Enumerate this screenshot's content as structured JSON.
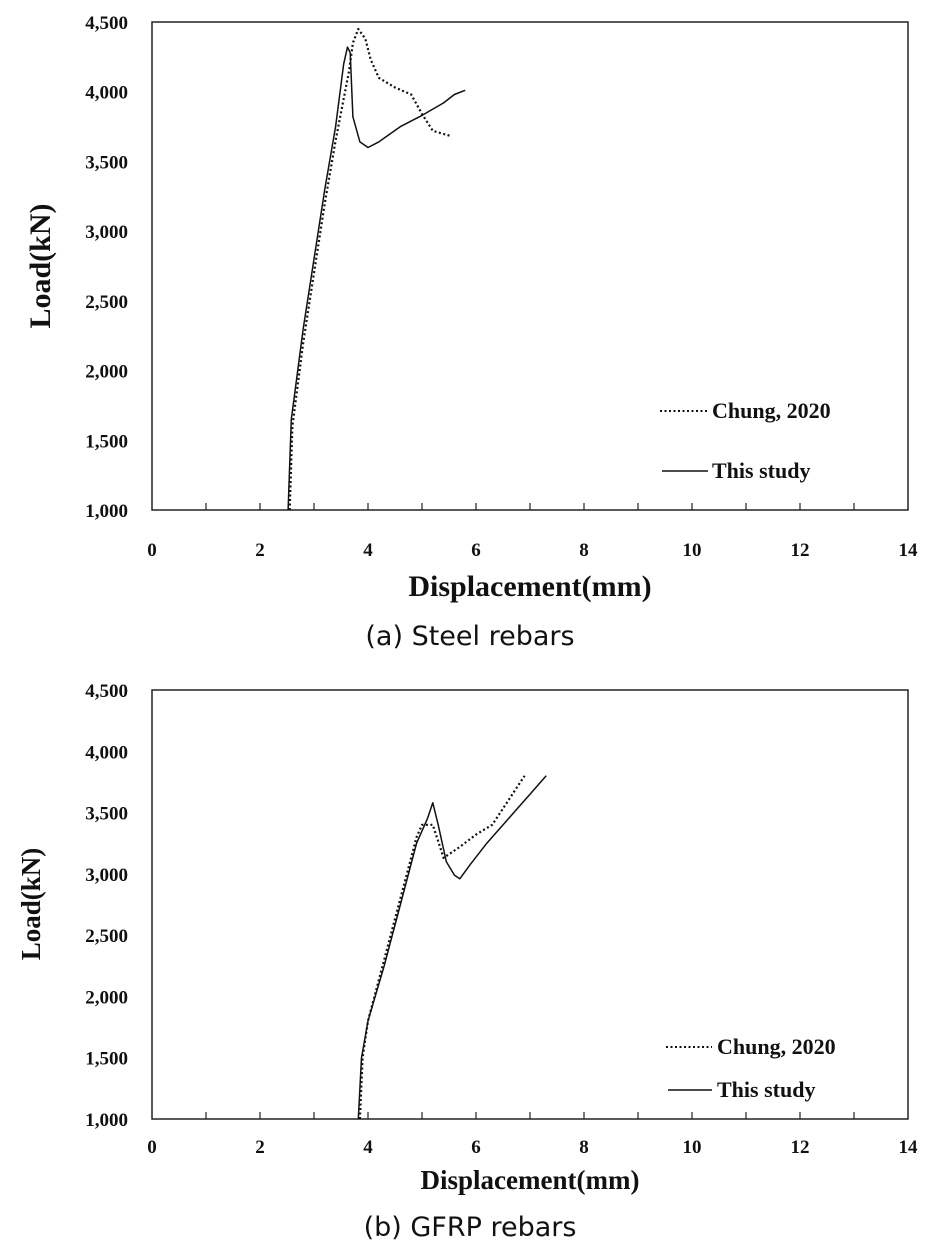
{
  "chart_data": [
    {
      "type": "line",
      "caption": "(a) Steel rebars",
      "xlabel": "Displacement(mm)",
      "ylabel": "Load(kN)",
      "xlim": [
        0,
        14
      ],
      "ylim": [
        1000,
        4500
      ],
      "x_ticks": [
        "0",
        "2",
        "4",
        "6",
        "8",
        "10",
        "12",
        "14"
      ],
      "y_ticks": [
        "1,000",
        "1,500",
        "2,000",
        "2,500",
        "3,000",
        "3,500",
        "4,000",
        "4,500"
      ],
      "legend_position": "bottom-right",
      "grid": false,
      "series": [
        {
          "name": "Chung, 2020",
          "style": "dotted",
          "points": [
            [
              2.55,
              1000
            ],
            [
              2.6,
              1600
            ],
            [
              2.8,
              2200
            ],
            [
              3.0,
              2700
            ],
            [
              3.2,
              3200
            ],
            [
              3.4,
              3650
            ],
            [
              3.55,
              3950
            ],
            [
              3.65,
              4150
            ],
            [
              3.72,
              4350
            ],
            [
              3.82,
              4450
            ],
            [
              3.95,
              4380
            ],
            [
              4.05,
              4230
            ],
            [
              4.2,
              4100
            ],
            [
              4.5,
              4030
            ],
            [
              4.8,
              3980
            ],
            [
              5.0,
              3840
            ],
            [
              5.2,
              3720
            ],
            [
              5.55,
              3680
            ]
          ]
        },
        {
          "name": "This study",
          "style": "solid",
          "points": [
            [
              2.52,
              1000
            ],
            [
              2.58,
              1650
            ],
            [
              2.8,
              2300
            ],
            [
              3.0,
              2800
            ],
            [
              3.2,
              3300
            ],
            [
              3.4,
              3750
            ],
            [
              3.55,
              4200
            ],
            [
              3.62,
              4320
            ],
            [
              3.67,
              4280
            ],
            [
              3.72,
              3820
            ],
            [
              3.85,
              3640
            ],
            [
              4.0,
              3600
            ],
            [
              4.2,
              3640
            ],
            [
              4.6,
              3750
            ],
            [
              5.0,
              3830
            ],
            [
              5.4,
              3920
            ],
            [
              5.6,
              3980
            ],
            [
              5.8,
              4010
            ]
          ]
        }
      ]
    },
    {
      "type": "line",
      "caption": "(b) GFRP rebars",
      "xlabel": "Displacement(mm)",
      "ylabel": "Load(kN)",
      "xlim": [
        0,
        14
      ],
      "ylim": [
        1000,
        4500
      ],
      "x_ticks": [
        "0",
        "2",
        "4",
        "6",
        "8",
        "10",
        "12",
        "14"
      ],
      "y_ticks": [
        "1,000",
        "1,500",
        "2,000",
        "2,500",
        "3,000",
        "3,500",
        "4,000",
        "4,500"
      ],
      "legend_position": "bottom-right",
      "grid": false,
      "series": [
        {
          "name": "Chung, 2020",
          "style": "dotted",
          "points": [
            [
              3.85,
              1000
            ],
            [
              3.9,
              1500
            ],
            [
              4.0,
              1800
            ],
            [
              4.3,
              2300
            ],
            [
              4.6,
              2800
            ],
            [
              4.9,
              3300
            ],
            [
              5.0,
              3400
            ],
            [
              5.2,
              3400
            ],
            [
              5.4,
              3130
            ],
            [
              5.7,
              3220
            ],
            [
              6.0,
              3320
            ],
            [
              6.3,
              3400
            ],
            [
              6.6,
              3600
            ],
            [
              6.9,
              3800
            ]
          ]
        },
        {
          "name": "This study",
          "style": "solid",
          "points": [
            [
              3.82,
              1000
            ],
            [
              3.88,
              1500
            ],
            [
              4.0,
              1800
            ],
            [
              4.3,
              2250
            ],
            [
              4.6,
              2750
            ],
            [
              4.9,
              3250
            ],
            [
              5.1,
              3450
            ],
            [
              5.2,
              3580
            ],
            [
              5.3,
              3400
            ],
            [
              5.45,
              3100
            ],
            [
              5.6,
              2990
            ],
            [
              5.7,
              2960
            ],
            [
              5.9,
              3080
            ],
            [
              6.2,
              3250
            ],
            [
              6.6,
              3450
            ],
            [
              7.0,
              3650
            ],
            [
              7.3,
              3800
            ]
          ]
        }
      ]
    }
  ]
}
